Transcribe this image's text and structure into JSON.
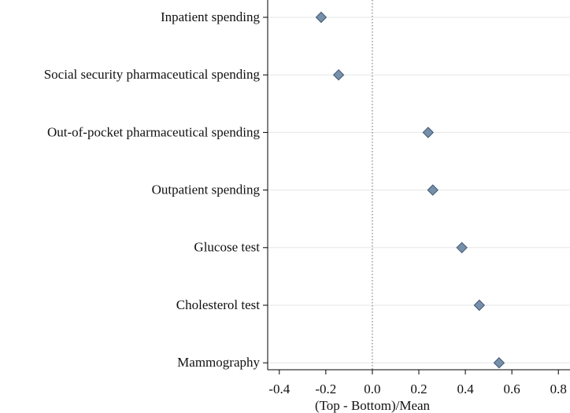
{
  "chart_data": {
    "type": "dot",
    "x_label": "(Top - Bottom)/Mean",
    "categories": [
      "Inpatient spending",
      "Social security pharmaceutical spending",
      "Out-of-pocket pharmaceutical spending",
      "Outpatient spending",
      "Glucose test",
      "Cholesterol test",
      "Mammography"
    ],
    "values": [
      -0.22,
      -0.145,
      0.24,
      0.26,
      0.385,
      0.46,
      0.545
    ],
    "color": "#7790aa",
    "xlim": [
      -0.45,
      0.85
    ],
    "xticks": [
      -0.4,
      -0.2,
      {
        "value": 0,
        "label": "0.0"
      },
      0.2,
      0.4,
      0.6,
      0.8
    ],
    "reference_line": 0,
    "grid": true
  }
}
